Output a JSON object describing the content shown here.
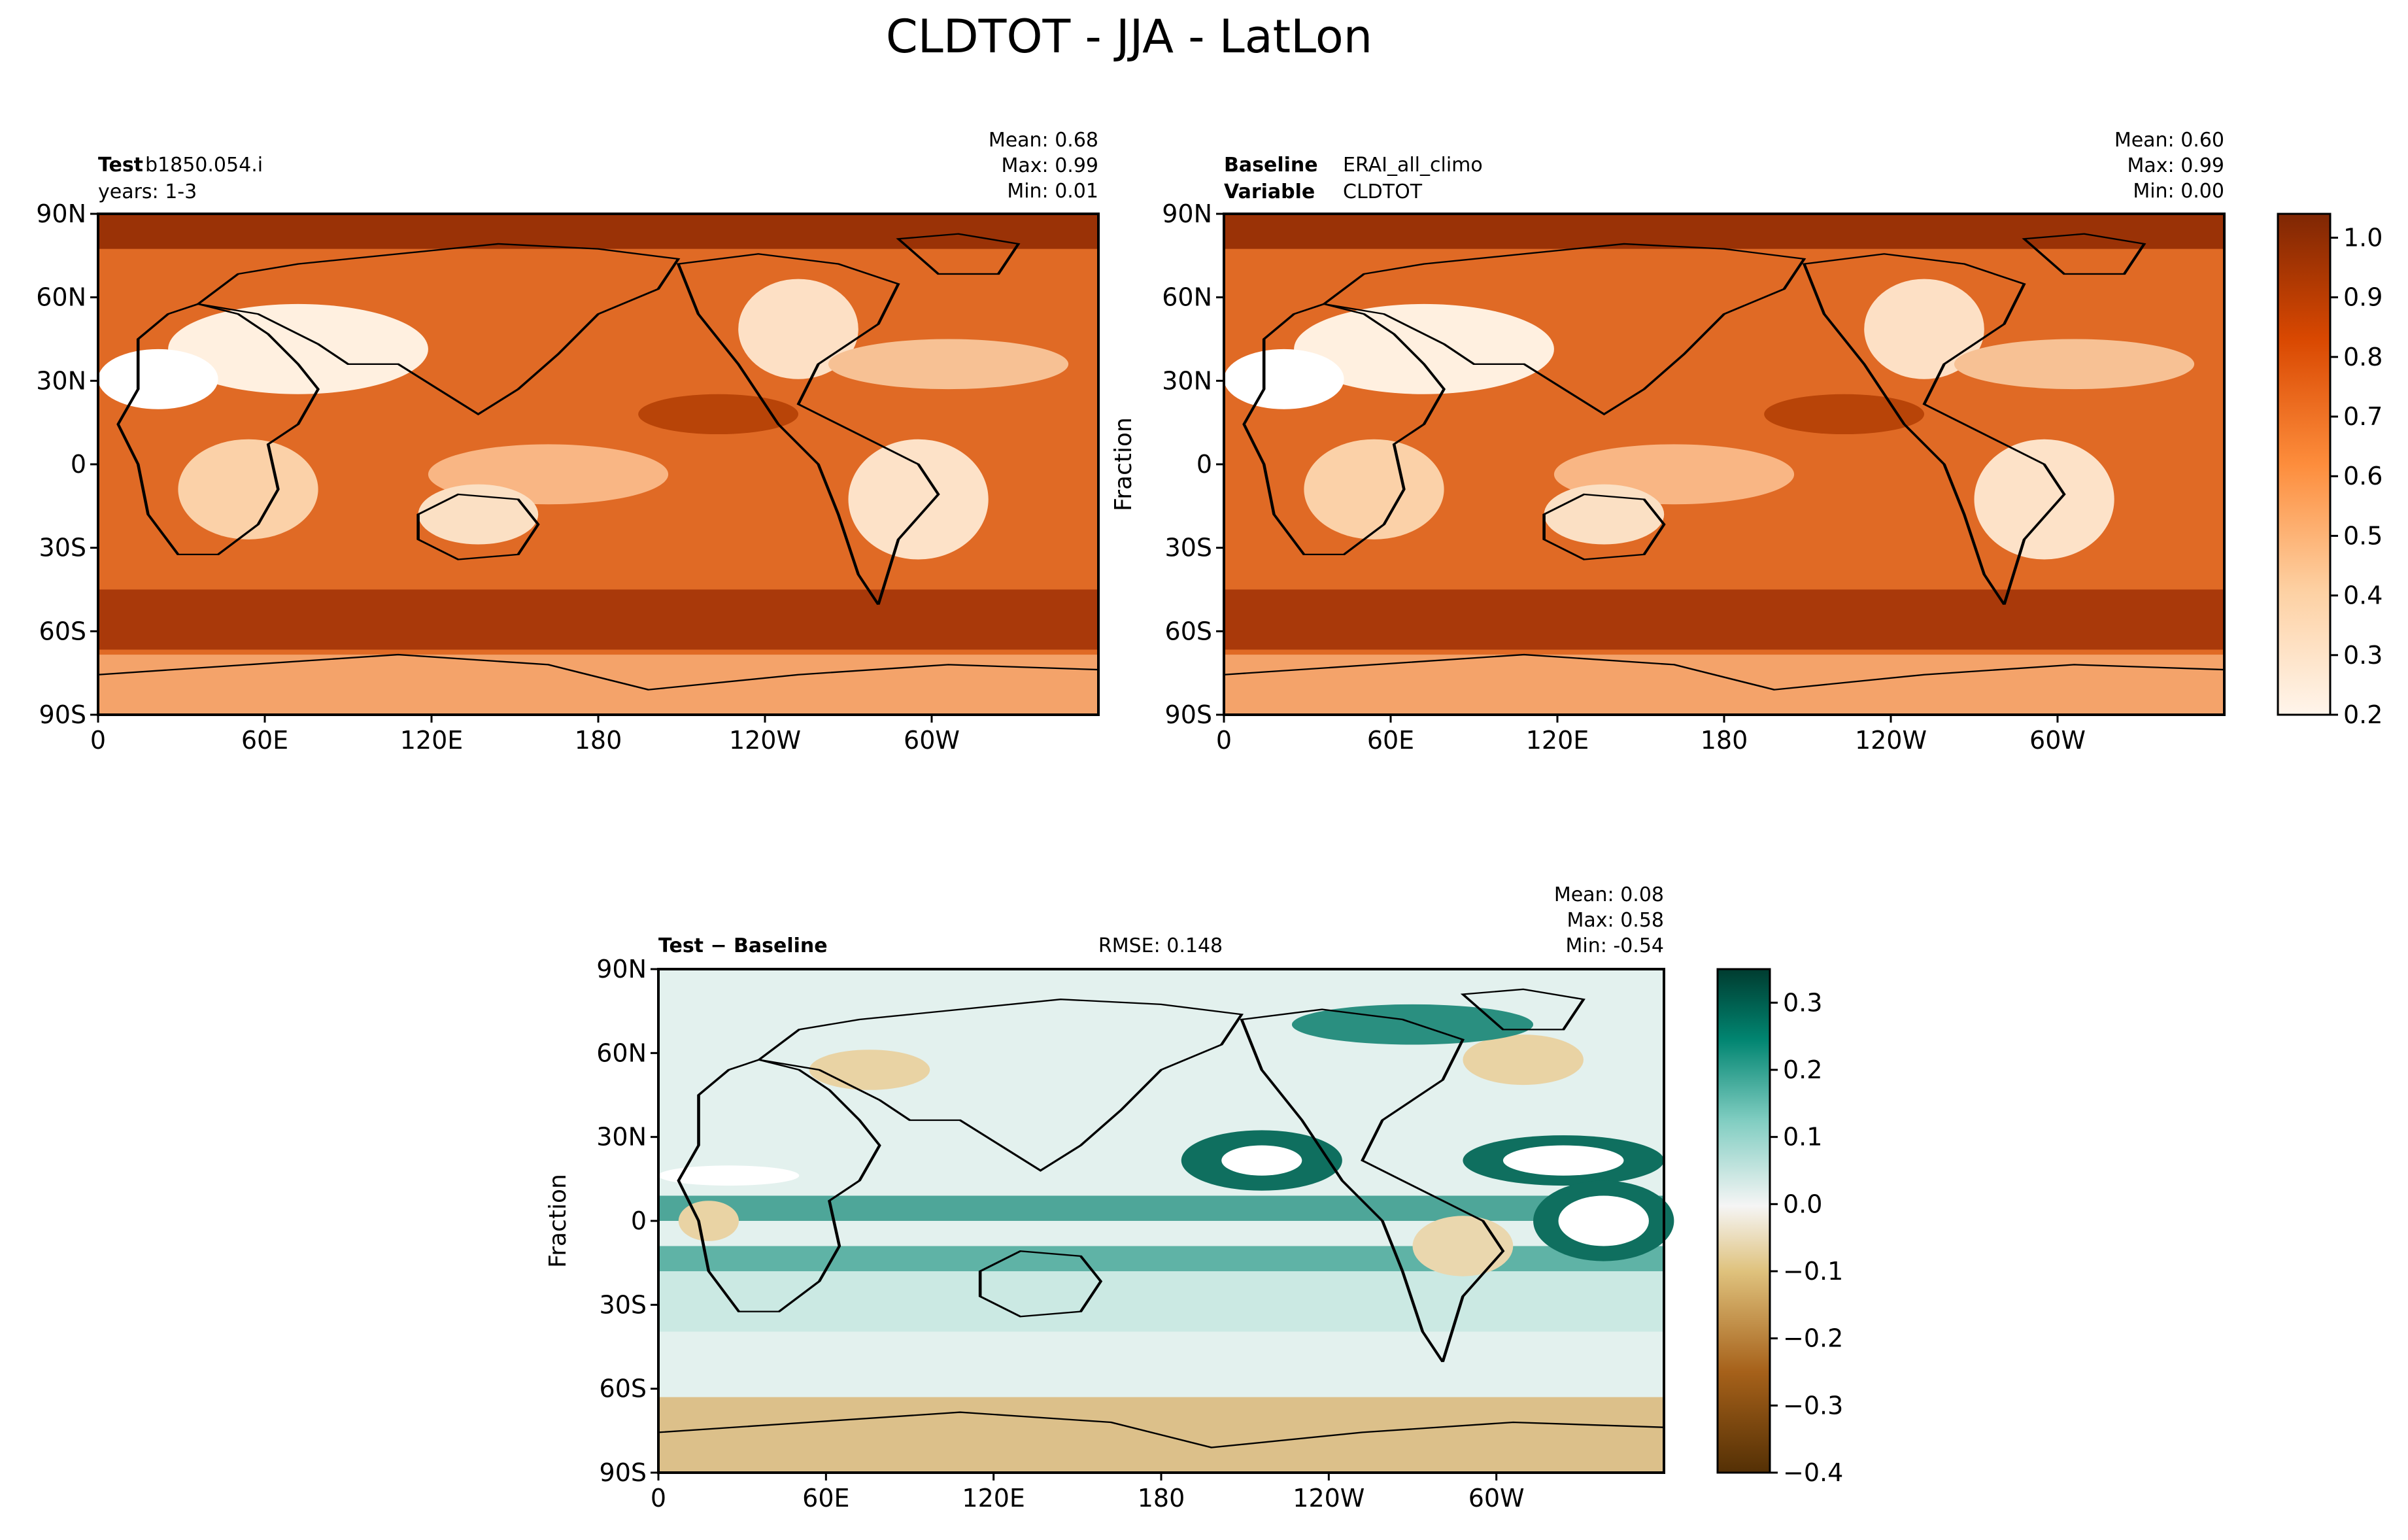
{
  "figure": {
    "title": "CLDTOT - JJA - LatLon"
  },
  "colors": {
    "seq_light": "#fff5eb",
    "seq_dark": "#7f2704",
    "div_neg": "#543005",
    "div_mid": "#f5f5f5",
    "div_pos": "#003c30",
    "coast": "#000000"
  },
  "chart_data": [
    {
      "type": "heatmap",
      "panel": "test",
      "label_bold": "Test",
      "label_text": "b1850.054.i",
      "label_line2": "years: 1-3",
      "stats": {
        "mean": "Mean:  0.68",
        "max": "Max:  0.99",
        "min": "Min:  0.01"
      },
      "x_ticks": [
        "0",
        "60E",
        "120E",
        "180",
        "120W",
        "60W"
      ],
      "y_ticks": [
        "90N",
        "60N",
        "30N",
        "0",
        "30S",
        "60S",
        "90S"
      ],
      "xlim": [
        0,
        360
      ],
      "ylim": [
        -90,
        90
      ],
      "colormap": "Oranges",
      "clim": [
        0.2,
        1.0
      ],
      "summary": {
        "mean": 0.68,
        "max": 0.99,
        "min": 0.01
      }
    },
    {
      "type": "heatmap",
      "panel": "baseline",
      "label_bold": "Baseline",
      "label_text": "ERAI_all_climo",
      "label_bold2": "Variable",
      "label_text2": "CLDTOT",
      "ylabel": "Fraction",
      "stats": {
        "mean": "Mean:  0.60",
        "max": "Max:  0.99",
        "min": "Min:  0.00"
      },
      "x_ticks": [
        "0",
        "60E",
        "120E",
        "180",
        "120W",
        "60W"
      ],
      "y_ticks": [
        "90N",
        "60N",
        "30N",
        "0",
        "30S",
        "60S",
        "90S"
      ],
      "xlim": [
        0,
        360
      ],
      "ylim": [
        -90,
        90
      ],
      "colormap": "Oranges",
      "clim": [
        0.2,
        1.0
      ],
      "colorbar_ticks": [
        "1.0",
        "0.9",
        "0.8",
        "0.7",
        "0.6",
        "0.5",
        "0.4",
        "0.3",
        "0.2"
      ],
      "summary": {
        "mean": 0.6,
        "max": 0.99,
        "min": 0.0
      }
    },
    {
      "type": "heatmap",
      "panel": "difference",
      "label_bold": "Test − Baseline",
      "rmse": "RMSE: 0.148",
      "ylabel": "Fraction",
      "stats": {
        "mean": "Mean:  0.08",
        "max": "Max:  0.58",
        "min": "Min: -0.54"
      },
      "x_ticks": [
        "0",
        "60E",
        "120E",
        "180",
        "120W",
        "60W"
      ],
      "y_ticks": [
        "90N",
        "60N",
        "30N",
        "0",
        "30S",
        "60S",
        "90S"
      ],
      "xlim": [
        0,
        360
      ],
      "ylim": [
        -90,
        90
      ],
      "colormap": "BrBG",
      "clim": [
        -0.4,
        0.35
      ],
      "colorbar_ticks": [
        "0.3",
        "0.2",
        "0.1",
        "0.0",
        "−0.1",
        "−0.2",
        "−0.3",
        "−0.4"
      ],
      "summary": {
        "mean": 0.08,
        "max": 0.58,
        "min": -0.54,
        "rmse": 0.148
      }
    }
  ]
}
